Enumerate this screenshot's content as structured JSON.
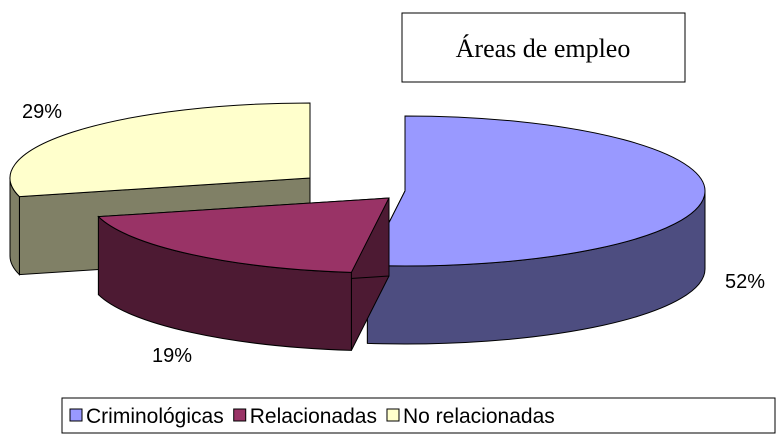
{
  "chart_data": {
    "type": "pie3d",
    "title": "Áreas de empleo",
    "categories": [
      "Criminológicas",
      "Relacionadas",
      "No relacionadas"
    ],
    "values": [
      52,
      19,
      29
    ],
    "value_labels": [
      "52%",
      "19%",
      "29%"
    ],
    "colors": [
      "#9999ff",
      "#993366",
      "#ffffcc"
    ],
    "legend": "bottom"
  }
}
